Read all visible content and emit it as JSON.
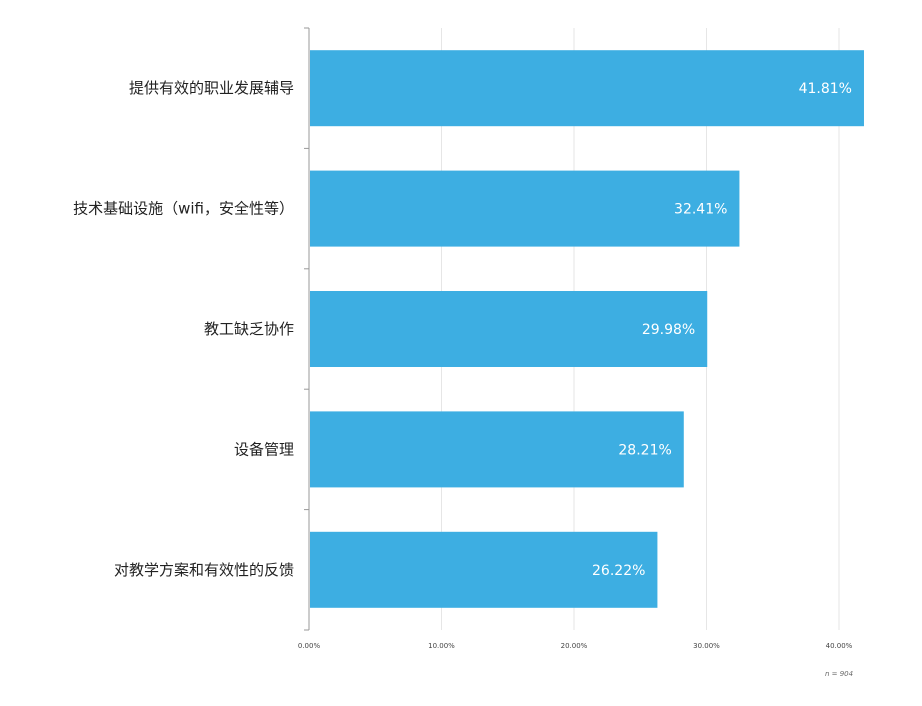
{
  "chart_data": {
    "type": "bar",
    "orientation": "horizontal",
    "categories": [
      "提供有效的职业发展辅导",
      "技术基础设施（wifi，安全性等）",
      "教工缺乏协作",
      "设备管理",
      "对教学方案和有效性的反馈"
    ],
    "values": [
      41.81,
      32.41,
      29.98,
      28.21,
      26.22
    ],
    "value_labels": [
      "41.81%",
      "32.41%",
      "29.98%",
      "28.21%",
      "26.22%"
    ],
    "x_ticks": [
      {
        "value": 0,
        "label": "0.00%"
      },
      {
        "value": 10,
        "label": "10.00%"
      },
      {
        "value": 20,
        "label": "20.00%"
      },
      {
        "value": 30,
        "label": "30.00%"
      },
      {
        "value": 40,
        "label": "40.00%"
      }
    ],
    "xlim": [
      0,
      40
    ],
    "grid": true,
    "colors": {
      "bar": "#3daee2",
      "grid": "#e6e6e6",
      "axis": "#999999"
    },
    "note": "n = 904"
  }
}
